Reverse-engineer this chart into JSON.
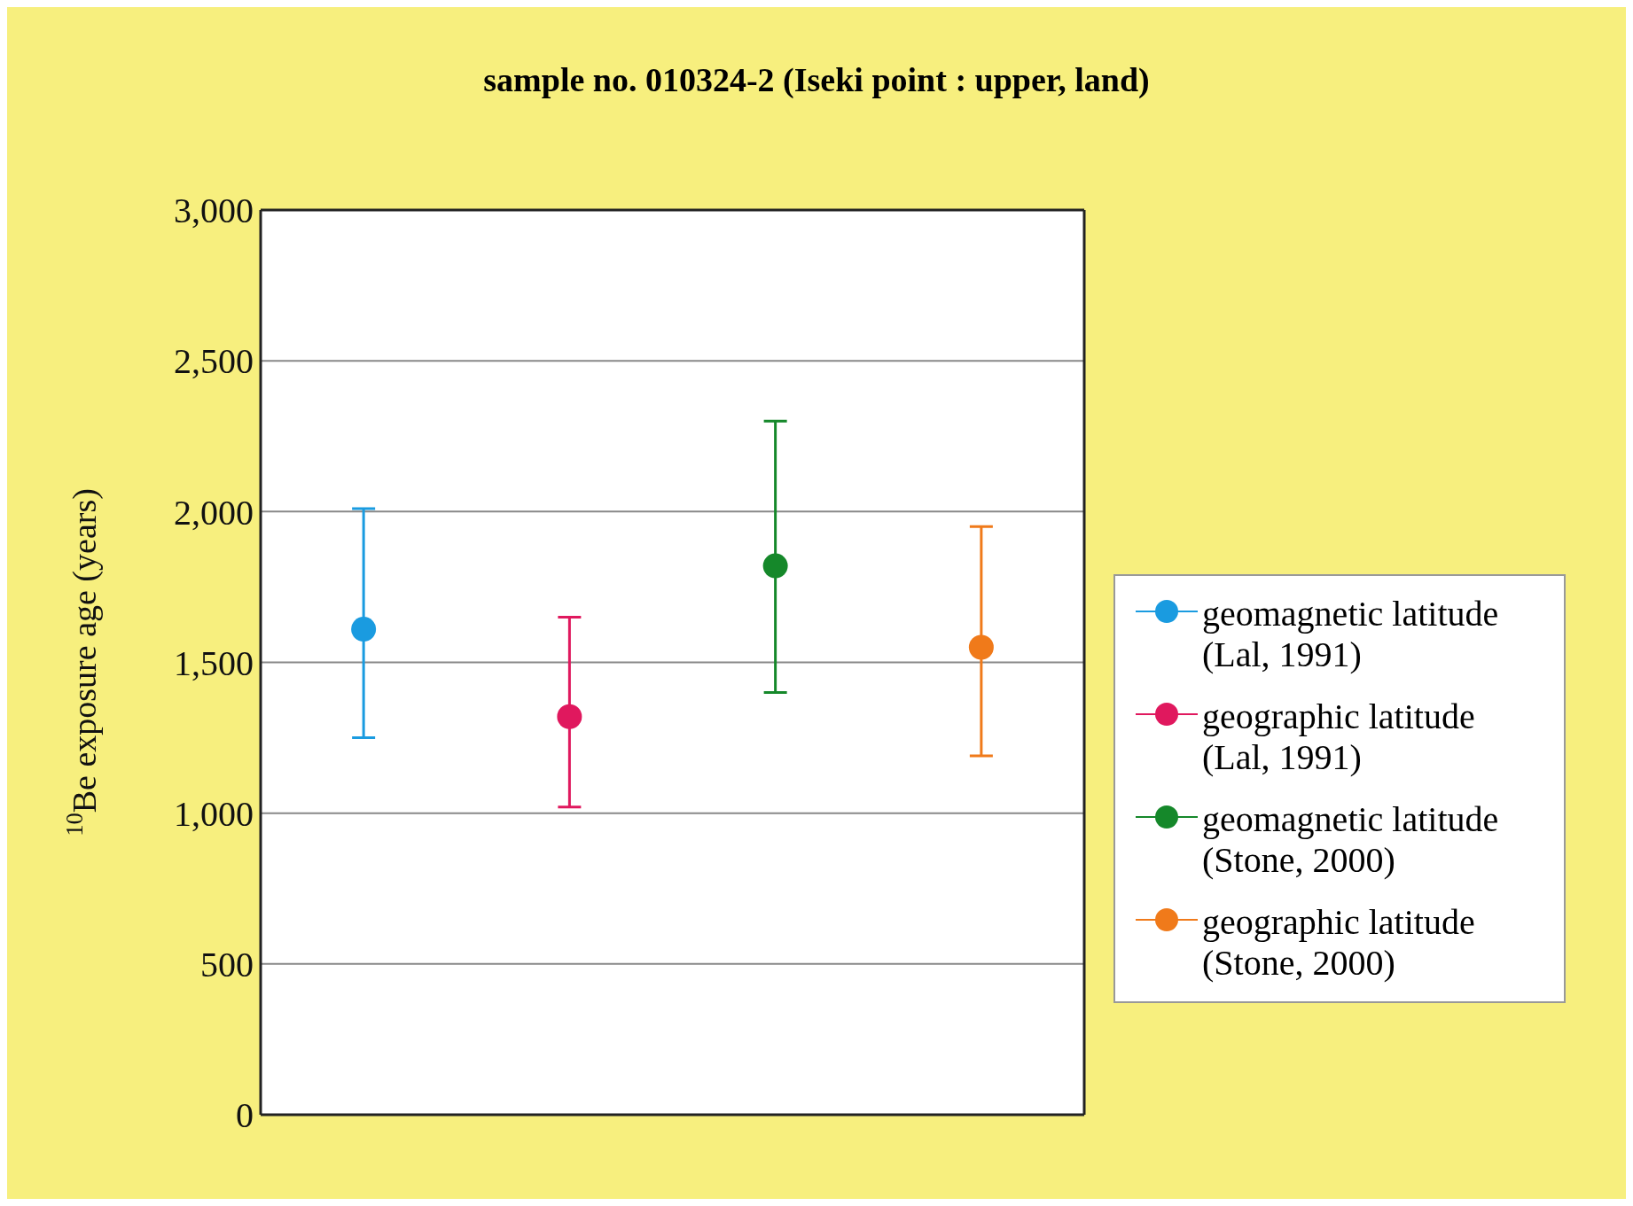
{
  "chart_data": {
    "type": "scatter",
    "title": "sample no. 010324-2 (Iseki point : upper, land)",
    "ylabel": "$^{10}$Be exposure age (years)",
    "categories": [
      null,
      null,
      null,
      null
    ],
    "ylim": [
      0,
      3000
    ],
    "yticks": [
      0,
      500,
      {
        "value": 1000,
        "label": "1,000"
      },
      {
        "value": 1500,
        "label": "1,500"
      },
      {
        "value": 2000,
        "label": "2,000"
      },
      {
        "value": 2500,
        "label": "2,500"
      },
      {
        "value": 3000,
        "label": "3,000"
      }
    ],
    "grid": "y",
    "legend": "right",
    "marker": "circle",
    "series": [
      {
        "name": "geomagnetic latitude (Lal, 1991)",
        "color": "#1a9be0",
        "values": [
          1610,
          null,
          null,
          null
        ],
        "errors": [
          [
            1250,
            2010
          ],
          null,
          null,
          null
        ]
      },
      {
        "name": "geographic latitude (Lal, 1991)",
        "color": "#e0185e",
        "values": [
          null,
          1320,
          null,
          null
        ],
        "errors": [
          null,
          [
            1020,
            1650
          ],
          null,
          null
        ]
      },
      {
        "name": "geomagnetic latitude (Stone, 2000)",
        "color": "#15882a",
        "values": [
          null,
          null,
          1820,
          null
        ],
        "errors": [
          null,
          null,
          [
            1400,
            2300
          ],
          null
        ]
      },
      {
        "name": "geographic latitude (Stone, 2000)",
        "color": "#f07a1a",
        "values": [
          null,
          null,
          null,
          1550
        ],
        "errors": [
          null,
          null,
          null,
          [
            1190,
            1950
          ]
        ]
      }
    ]
  }
}
